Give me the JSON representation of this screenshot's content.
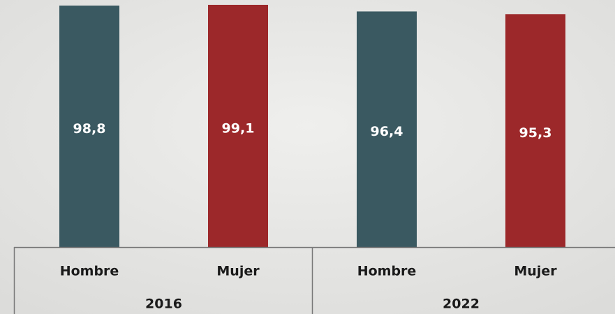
{
  "chart_data": {
    "type": "bar",
    "categories": [
      "Hombre",
      "Mujer",
      "Hombre",
      "Mujer"
    ],
    "group_labels": [
      "2016",
      "2022"
    ],
    "values": [
      98.8,
      99.1,
      96.4,
      95.3
    ],
    "value_labels": [
      "98,8",
      "99,1",
      "96,4",
      "95,3"
    ],
    "colors": [
      "#3a5961",
      "#9c282a",
      "#3a5961",
      "#9c282a"
    ]
  }
}
